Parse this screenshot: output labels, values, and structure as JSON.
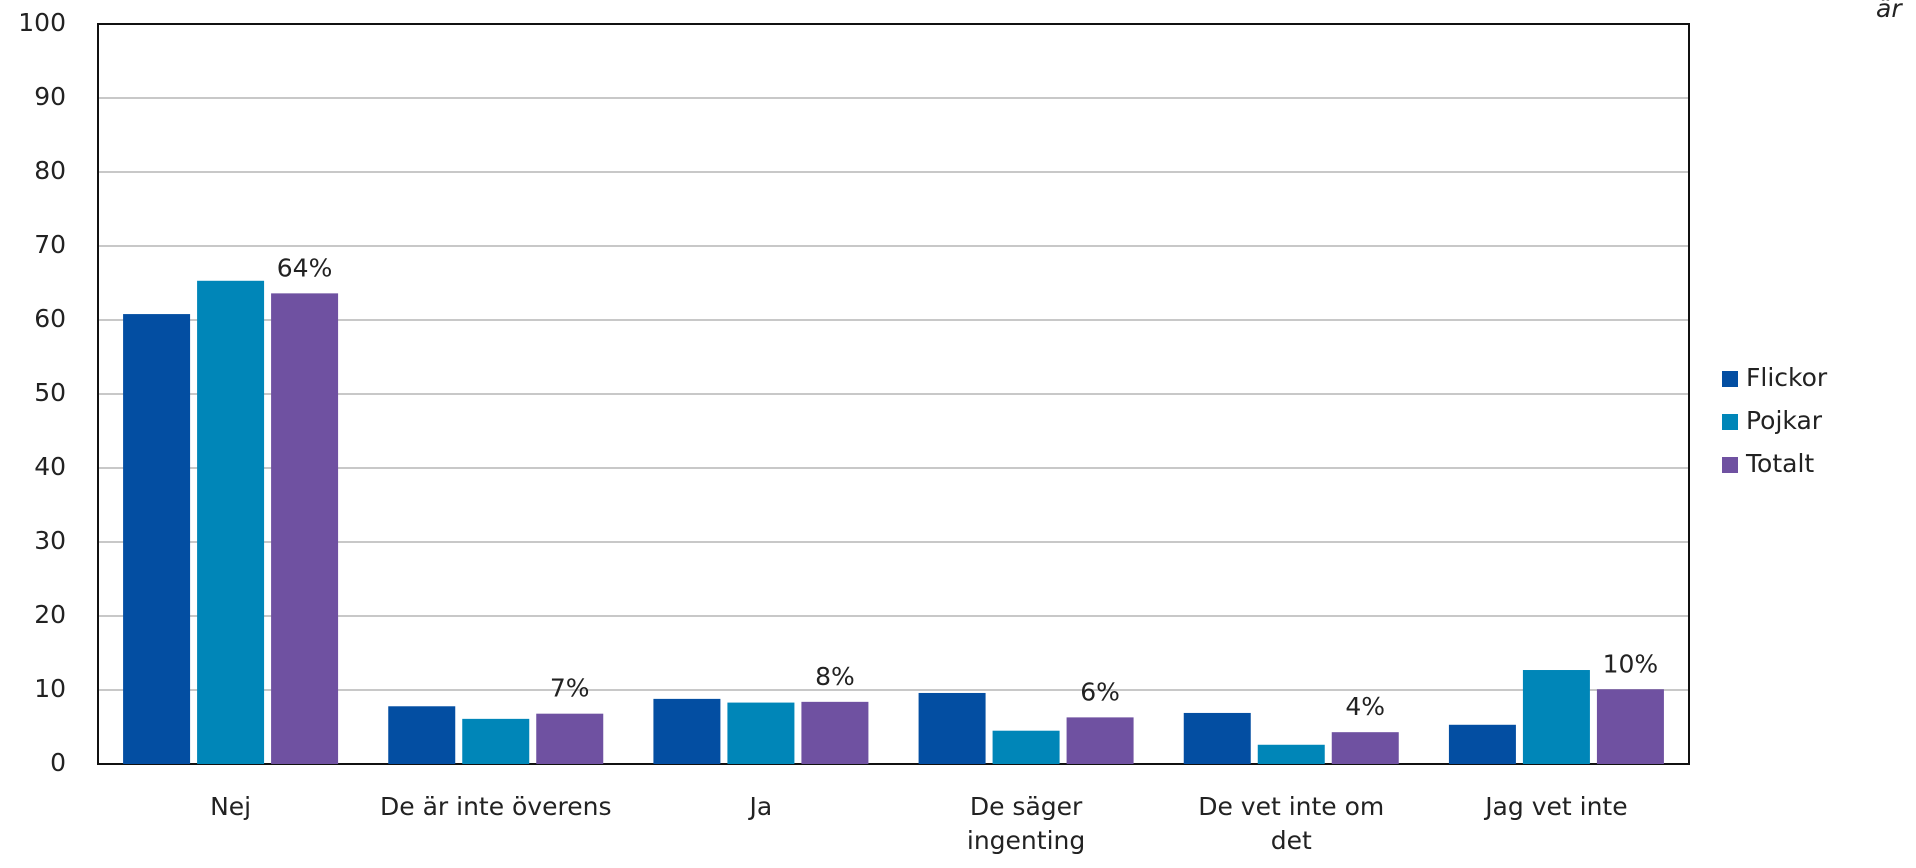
{
  "chart_data": {
    "type": "bar",
    "annotation": "är",
    "categories": [
      "Nej",
      "De är inte överens",
      "Ja",
      "De säger ingenting",
      "De vet inte om det",
      "Jag vet inte"
    ],
    "series": [
      {
        "name": "Flickor",
        "color": "#034ea2",
        "values": [
          60.8,
          7.8,
          8.8,
          9.6,
          6.9,
          5.3
        ]
      },
      {
        "name": "Pojkar",
        "color": "#0086b8",
        "values": [
          65.3,
          6.1,
          8.3,
          4.5,
          2.6,
          12.7
        ]
      },
      {
        "name": "Totalt",
        "color": "#6f51a1",
        "values": [
          63.6,
          6.8,
          8.4,
          6.3,
          4.3,
          10.1
        ],
        "value_labels": [
          "64%",
          "7%",
          "8%",
          "6%",
          "4%",
          "10%"
        ]
      }
    ],
    "ylim": [
      0,
      100
    ],
    "yticks": [
      0,
      10,
      20,
      30,
      40,
      50,
      60,
      70,
      80,
      90,
      100
    ],
    "grid": true,
    "legend": "right"
  }
}
